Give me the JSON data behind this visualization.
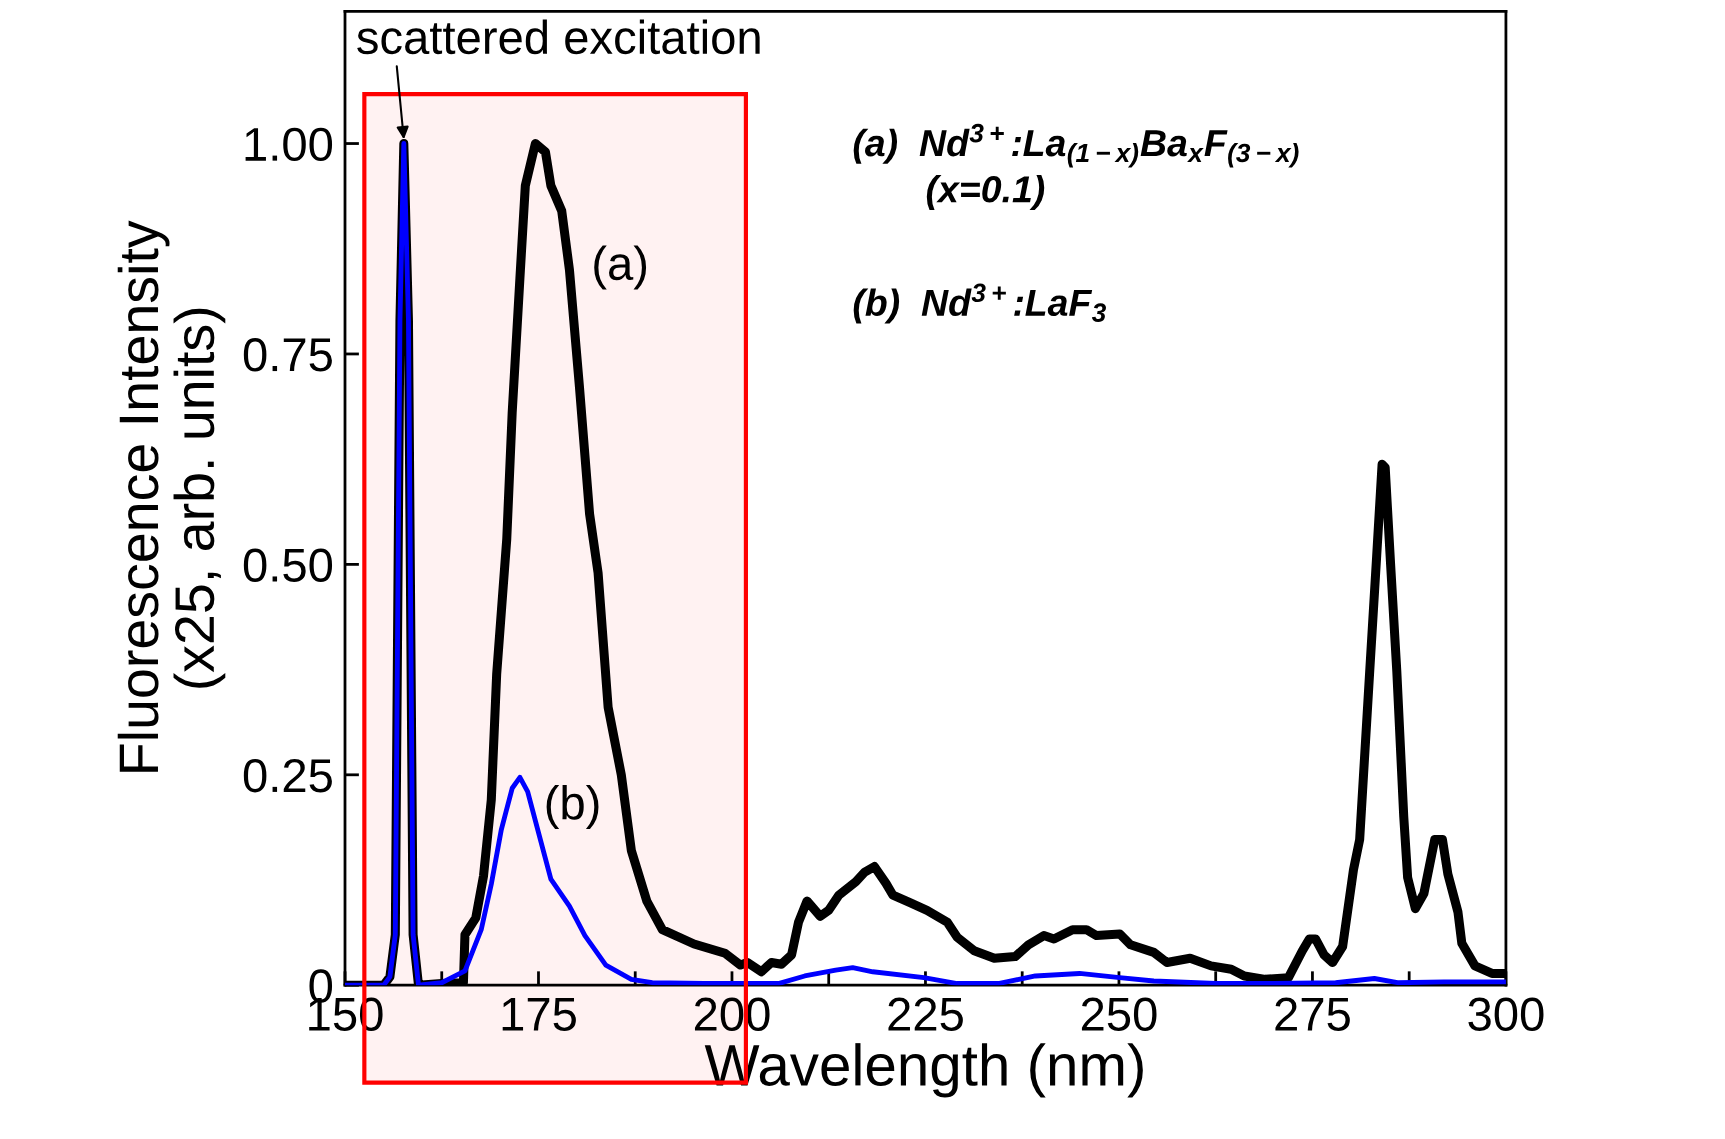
{
  "chart_data": {
    "type": "line",
    "xlabel": "Wavelength (nm)",
    "ylabel": "Fluorescence Intensity\n(x25, arb. units)",
    "xlim": [
      150,
      300
    ],
    "ylim": [
      0,
      1.157
    ],
    "xticks": [
      150,
      {
        "value": 162.5,
        "label": null
      },
      175,
      {
        "value": 187.5,
        "label": null
      },
      200,
      {
        "value": 212.5,
        "label": null
      },
      225,
      {
        "value": 237.5,
        "label": null
      },
      250,
      {
        "value": 262.5,
        "label": null
      },
      275,
      {
        "value": 287.5,
        "label": null
      },
      300
    ],
    "yticks": [
      0,
      0.25,
      {
        "value": 0.5,
        "label": "0.50"
      },
      0.75,
      {
        "value": 1.0,
        "label": "1.00"
      }
    ],
    "grid": false,
    "legend": false,
    "marker": "none",
    "line_style": "solid",
    "series": [
      {
        "color": "#000000",
        "x": [
          150,
          155,
          155.8,
          156.5,
          157.1,
          157.6,
          158.2,
          158.8,
          159.5,
          162.5,
          165.3,
          165.5,
          166.9,
          167.9,
          168.9,
          169.6,
          170.9,
          171.6,
          172.6,
          173.3,
          174.6,
          175.9,
          176.6,
          178.0,
          179.0,
          180.3,
          181.6,
          182.7,
          184.0,
          185.7,
          187.0,
          189.0,
          191.0,
          195.1,
          199.1,
          201.1,
          202.0,
          203.8,
          205.1,
          206.4,
          207.7,
          208.6,
          209.7,
          211.4,
          212.5,
          213.8,
          216.0,
          217.1,
          218.4,
          219.9,
          220.8,
          223.0,
          225.2,
          227.8,
          229.1,
          231.3,
          233.9,
          236.6,
          238.3,
          240.3,
          241.6,
          244.0,
          245.8,
          247.1,
          250.1,
          251.5,
          254.5,
          256.2,
          259.2,
          261.9,
          264.5,
          266.2,
          268.9,
          271.9,
          273.7,
          274.6,
          275.4,
          276.5,
          277.6,
          278.9,
          280.3,
          281.1,
          282.4,
          283.3,
          284.0,
          284.4,
          285.1,
          285.9,
          286.8,
          287.3,
          288.3,
          289.4,
          290.8,
          291.8,
          292.5,
          293.8,
          294.3,
          296.0,
          298.2,
          300
        ],
        "values": [
          0,
          0,
          0.01,
          0.06,
          0.79,
          1.0,
          0.79,
          0.06,
          0.0,
          0.002,
          0.003,
          0.06,
          0.08,
          0.13,
          0.22,
          0.37,
          0.53,
          0.68,
          0.84,
          0.95,
          1.0,
          0.99,
          0.95,
          0.92,
          0.85,
          0.71,
          0.56,
          0.49,
          0.33,
          0.25,
          0.16,
          0.1,
          0.066,
          0.049,
          0.038,
          0.024,
          0.027,
          0.016,
          0.027,
          0.025,
          0.036,
          0.075,
          0.1,
          0.082,
          0.089,
          0.107,
          0.123,
          0.134,
          0.141,
          0.121,
          0.107,
          0.098,
          0.089,
          0.075,
          0.057,
          0.041,
          0.032,
          0.034,
          0.048,
          0.059,
          0.055,
          0.066,
          0.066,
          0.059,
          0.061,
          0.048,
          0.039,
          0.027,
          0.032,
          0.023,
          0.019,
          0.011,
          0.007,
          0.009,
          0.041,
          0.055,
          0.055,
          0.036,
          0.027,
          0.046,
          0.137,
          0.173,
          0.373,
          0.51,
          0.619,
          0.615,
          0.5,
          0.373,
          0.2,
          0.128,
          0.091,
          0.109,
          0.173,
          0.173,
          0.132,
          0.087,
          0.05,
          0.023,
          0.014,
          0.014
        ]
      },
      {
        "color": "#0000ff",
        "x": [
          150,
          155,
          155.8,
          156.5,
          157.1,
          157.6,
          158.2,
          158.8,
          159.5,
          162.5,
          165.5,
          167.6,
          168.9,
          170.2,
          171.6,
          172.6,
          173.6,
          174.9,
          176.6,
          179.0,
          181.0,
          183.7,
          187.0,
          189.7,
          196.4,
          203.1,
          206.0,
          209.4,
          213.4,
          215.6,
          218.2,
          224.8,
          229.1,
          234.4,
          239.2,
          244.9,
          250.1,
          254.5,
          262.5,
          270.0,
          278.0,
          283.0,
          286.0,
          292.0,
          300
        ],
        "values": [
          0,
          0,
          0.01,
          0.06,
          0.79,
          1.0,
          0.79,
          0.06,
          0.0,
          0.003,
          0.017,
          0.066,
          0.12,
          0.185,
          0.234,
          0.247,
          0.23,
          0.185,
          0.126,
          0.094,
          0.059,
          0.024,
          0.007,
          0.003,
          0.002,
          0.002,
          0.002,
          0.011,
          0.018,
          0.021,
          0.016,
          0.009,
          0.002,
          0.002,
          0.011,
          0.014,
          0.009,
          0.005,
          0.002,
          0.002,
          0.003,
          0.008,
          0.003,
          0.004,
          0.004
        ]
      }
    ],
    "bands": [
      {
        "axis": "x",
        "from": 152.5,
        "to": 201.8,
        "color": "#ff0000"
      }
    ],
    "annotations": [
      {
        "text": "scattered excitation",
        "x": 157.6,
        "y": 1.0
      },
      "(a)",
      "(b)",
      "(a)  Nd$^{3+}$:La$_{(1−x)}$Ba$_{x}$F$_{(3−x)}$",
      "(x=0.1)",
      "(b)  Nd$^{3+}$:LaF$_{3}$"
    ]
  }
}
